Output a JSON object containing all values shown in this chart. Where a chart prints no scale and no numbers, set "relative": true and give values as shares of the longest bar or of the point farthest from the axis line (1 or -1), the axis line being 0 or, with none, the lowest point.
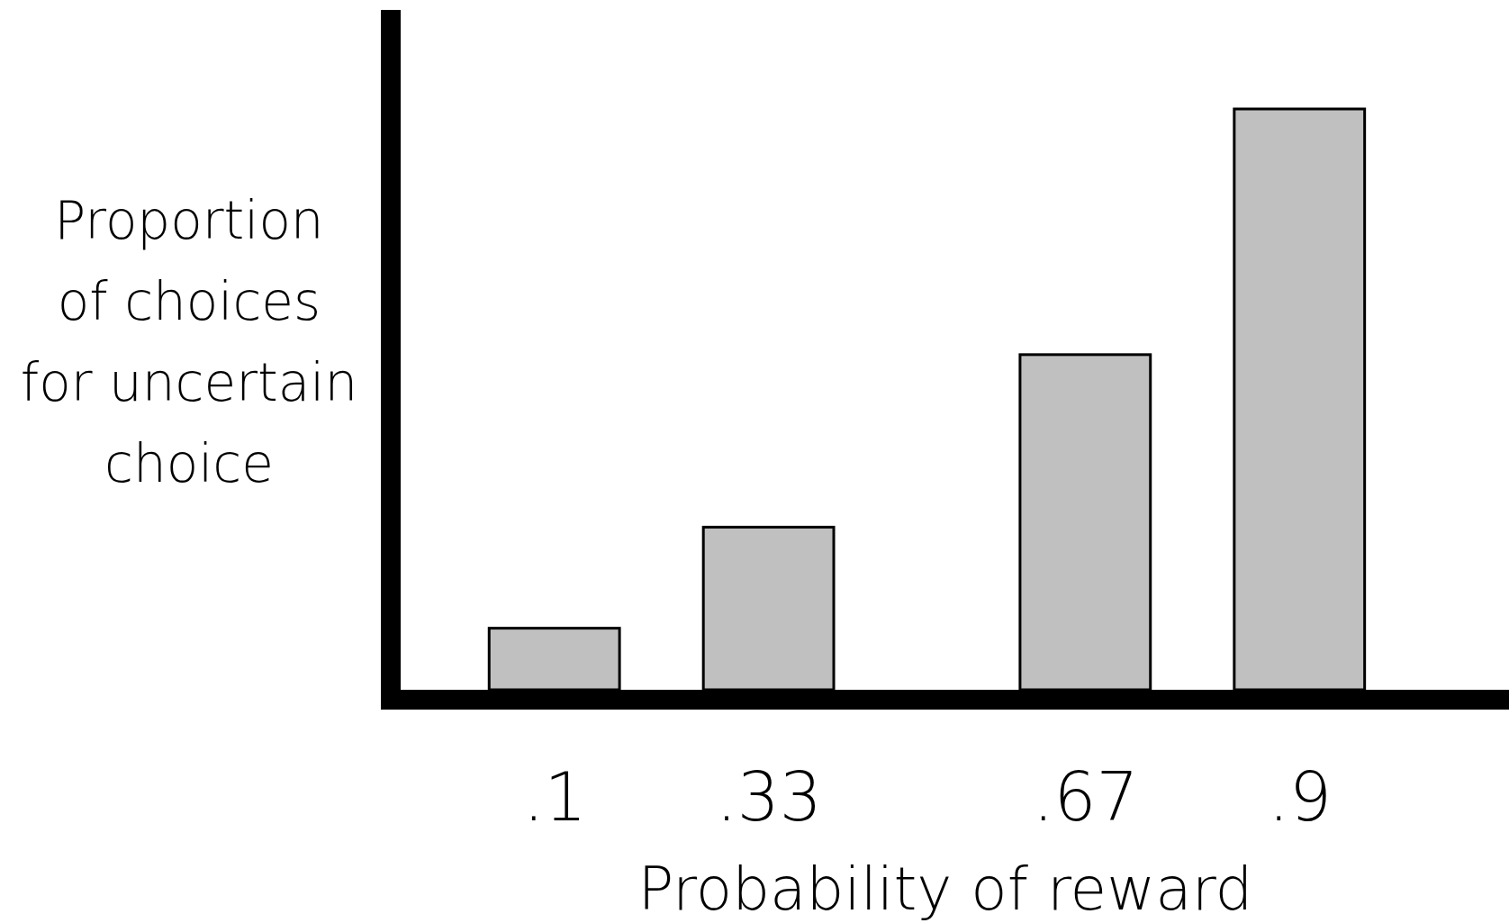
{
  "chart_data": {
    "type": "bar",
    "relative": true,
    "xlabel": "Probability of reward",
    "ylabel": "Proportion\nof choices\nfor uncertain\nchoice",
    "x": [
      0.1,
      0.33,
      0.67,
      0.9
    ],
    "values": [
      0.106,
      0.28,
      0.577,
      1
    ],
    "color": "#c0c0c0",
    "xlim": [
      -0.065,
      1.125
    ],
    "xticks": [
      {
        "value": 0.1,
        "label": ".1"
      },
      {
        "value": 0.33,
        "label": ".33"
      },
      {
        "value": 0.67,
        "label": ".67"
      },
      {
        "value": 0.9,
        "label": ".9"
      }
    ]
  }
}
